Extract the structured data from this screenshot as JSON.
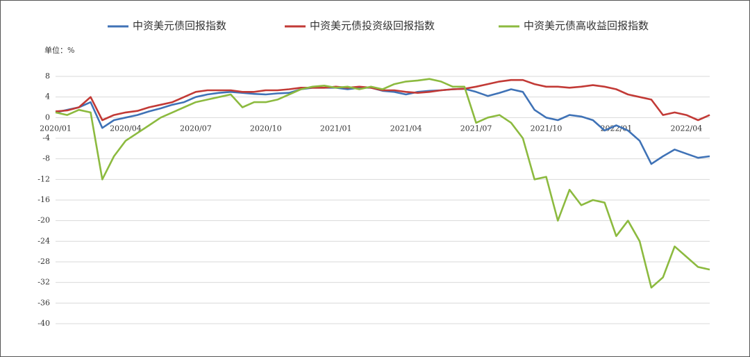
{
  "chart_data": {
    "type": "line",
    "unit_label": "单位：%",
    "categories": [
      "2020/01",
      null,
      null,
      null,
      null,
      null,
      "2020/04",
      null,
      null,
      null,
      null,
      null,
      "2020/07",
      null,
      null,
      null,
      null,
      null,
      "2020/10",
      null,
      null,
      null,
      null,
      null,
      "2021/01",
      null,
      null,
      null,
      null,
      null,
      "2021/04",
      null,
      null,
      null,
      null,
      null,
      "2021/07",
      null,
      null,
      null,
      null,
      null,
      "2021/10",
      null,
      null,
      null,
      null,
      null,
      "2022/01",
      null,
      null,
      null,
      null,
      null,
      "2022/04",
      null,
      null
    ],
    "series": [
      {
        "name": "中资美元债回报指数",
        "color": "#3f72b6",
        "values": [
          1.0,
          1.5,
          2.0,
          3.0,
          -2.0,
          -0.5,
          0.0,
          0.5,
          1.2,
          1.8,
          2.5,
          3.0,
          4.0,
          4.5,
          4.8,
          5.0,
          4.8,
          4.6,
          4.5,
          4.7,
          4.8,
          5.5,
          5.8,
          5.8,
          5.8,
          5.5,
          5.8,
          5.8,
          5.2,
          5.0,
          4.5,
          5.0,
          5.2,
          5.3,
          5.5,
          5.6,
          5.0,
          4.2,
          4.8,
          5.5,
          5.0,
          1.5,
          0.0,
          -0.5,
          0.5,
          0.2,
          -0.5,
          -2.5,
          -1.5,
          -2.5,
          -4.5,
          -9.0,
          -7.5,
          -6.2,
          -7.0,
          -7.8,
          -7.5
        ]
      },
      {
        "name": "中资美元债投资级回报指数",
        "color": "#c23a36",
        "values": [
          1.2,
          1.4,
          2.0,
          4.0,
          -0.5,
          0.5,
          1.0,
          1.3,
          2.0,
          2.5,
          3.0,
          4.0,
          5.0,
          5.3,
          5.3,
          5.3,
          5.0,
          5.0,
          5.3,
          5.3,
          5.5,
          5.8,
          5.8,
          5.8,
          6.0,
          5.8,
          6.0,
          5.8,
          5.3,
          5.3,
          5.0,
          4.8,
          5.0,
          5.3,
          5.5,
          5.6,
          6.0,
          6.5,
          7.0,
          7.3,
          7.3,
          6.5,
          6.0,
          6.0,
          5.8,
          6.0,
          6.3,
          6.0,
          5.5,
          4.5,
          4.0,
          3.5,
          0.5,
          1.0,
          0.5,
          -0.5,
          0.5
        ]
      },
      {
        "name": "中资美元债高收益回报指数",
        "color": "#8cba3f",
        "values": [
          1.0,
          0.5,
          1.5,
          1.0,
          -12.0,
          -7.5,
          -4.5,
          -3.0,
          -1.5,
          0.0,
          1.0,
          2.0,
          3.0,
          3.5,
          4.0,
          4.5,
          2.0,
          3.0,
          3.0,
          3.5,
          4.5,
          5.5,
          6.0,
          6.2,
          5.8,
          6.0,
          5.5,
          6.0,
          5.5,
          6.5,
          7.0,
          7.2,
          7.5,
          7.0,
          6.0,
          6.0,
          -1.0,
          0.0,
          0.5,
          -1.0,
          -4.0,
          -12.0,
          -11.5,
          -20.0,
          -14.0,
          -17.0,
          -16.0,
          -16.5,
          -23.0,
          -20.0,
          -24.0,
          -33.0,
          -31.0,
          -25.0,
          -27.0,
          -29.0,
          -29.5
        ]
      }
    ],
    "ylim": [
      -40,
      8
    ],
    "yticks": [
      8,
      4,
      0,
      -4,
      -8,
      -12,
      -16,
      -20,
      -24,
      -28,
      -32,
      -36,
      -40
    ],
    "grid": true
  }
}
